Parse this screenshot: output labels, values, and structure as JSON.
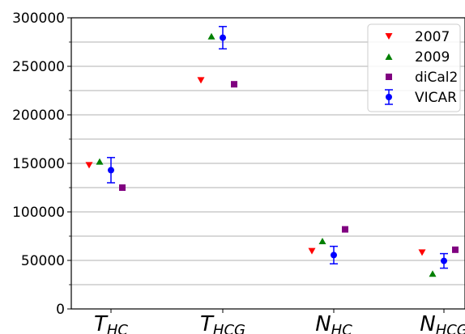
{
  "chart_data": {
    "type": "scatter",
    "categories": [
      {
        "main": "T",
        "sub": "HC"
      },
      {
        "main": "T",
        "sub": "HCG"
      },
      {
        "main": "N",
        "sub": "HC"
      },
      {
        "main": "N",
        "sub": "HCG"
      }
    ],
    "ylim": [
      0,
      300000
    ],
    "yticks": [
      0,
      50000,
      100000,
      150000,
      200000,
      250000,
      300000
    ],
    "ytick_labels": [
      "0",
      "50000",
      "100000",
      "150000",
      "200000",
      "250000",
      "300000"
    ],
    "grid": true,
    "legend_position": "top-right",
    "series": [
      {
        "name": "2007",
        "marker": "triangle-down",
        "color": "#ff0000",
        "values": [
          148000,
          235500,
          59500,
          58000
        ]
      },
      {
        "name": "2009",
        "marker": "triangle-up",
        "color": "#008000",
        "values": [
          152000,
          281000,
          70000,
          36500
        ]
      },
      {
        "name": "diCal2",
        "marker": "square",
        "color": "#800080",
        "values": [
          125000,
          231500,
          82000,
          61000
        ]
      },
      {
        "name": "VICAR",
        "marker": "circle-errorbar",
        "color": "#0000ff",
        "values": [
          143000,
          279500,
          55500,
          49500
        ],
        "err_low": [
          130000,
          268000,
          46500,
          42000
        ],
        "err_high": [
          156000,
          291000,
          64500,
          57000
        ]
      }
    ]
  }
}
